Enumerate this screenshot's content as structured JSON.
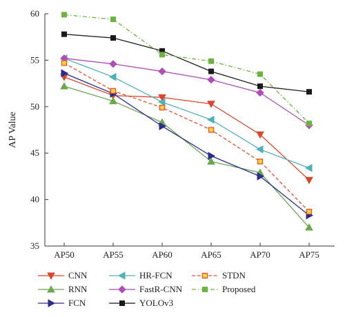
{
  "chart_data": {
    "type": "line",
    "title": "",
    "xlabel": "",
    "ylabel": "AP Value",
    "categories": [
      "AP50",
      "AP55",
      "AP60",
      "AP65",
      "AP70",
      "AP75"
    ],
    "ylim": [
      35,
      60
    ],
    "yticks": [
      35,
      40,
      45,
      50,
      55,
      60
    ],
    "grid": false,
    "legend_position": "bottom",
    "series": [
      {
        "name": "CNN",
        "color": "#d9472b",
        "marker": "triangle-down",
        "dash": "solid",
        "values": [
          53.2,
          51.2,
          51.0,
          50.3,
          47.0,
          42.1
        ]
      },
      {
        "name": "RNN",
        "color": "#6aa84f",
        "marker": "triangle-up",
        "dash": "solid",
        "values": [
          52.2,
          50.6,
          48.3,
          44.1,
          42.9,
          37.0
        ]
      },
      {
        "name": "FCN",
        "color": "#2b2b8c",
        "marker": "triangle-right",
        "dash": "solid",
        "values": [
          53.6,
          51.4,
          47.9,
          44.7,
          42.5,
          38.3
        ]
      },
      {
        "name": "HR-FCN",
        "color": "#4eb0b8",
        "marker": "triangle-left",
        "dash": "solid",
        "values": [
          55.2,
          53.2,
          50.5,
          48.6,
          45.4,
          43.4
        ]
      },
      {
        "name": "FastR-CNN",
        "color": "#b04cb8",
        "marker": "diamond",
        "dash": "solid",
        "values": [
          55.2,
          54.6,
          53.8,
          52.9,
          51.5,
          48.0
        ]
      },
      {
        "name": "YOLOv3",
        "color": "#1a1a1a",
        "marker": "square",
        "dash": "solid",
        "values": [
          57.8,
          57.4,
          56.0,
          53.8,
          52.2,
          51.6
        ]
      },
      {
        "name": "STDN",
        "color": "#e8502a",
        "marker": "square-open",
        "dash": "dashed",
        "values": [
          54.7,
          51.7,
          49.9,
          47.5,
          44.1,
          38.7
        ]
      },
      {
        "name": "Proposed",
        "color": "#6cb33f",
        "marker": "square",
        "dash": "dashdot",
        "values": [
          59.9,
          59.4,
          55.6,
          54.9,
          53.5,
          48.2
        ]
      }
    ]
  }
}
